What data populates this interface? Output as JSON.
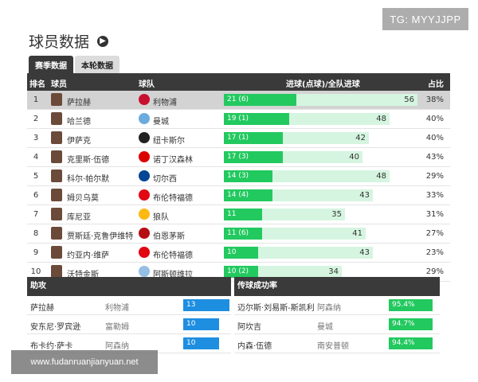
{
  "watermark_top": "TG: MYYJJPP",
  "watermark_bottom": "www.fudanruanjianyuan.net",
  "title": "球员数据",
  "tabs": [
    "赛季数据",
    "本轮数据"
  ],
  "headers": {
    "rank": "排名",
    "player": "球员",
    "team": "球队",
    "goals": "进球(点球)/全队进球",
    "share": "占比"
  },
  "colors": {
    "header_bg": "#3a3a3a",
    "goal_bar": "#22c95f",
    "goal_bar_bg": "#d5f5e0",
    "assist_bar": "#1e8ee0",
    "pass_bar": "#22c95f"
  },
  "players": [
    {
      "rank": "1",
      "name": "萨拉赫",
      "team": "利物浦",
      "crest": "#c8102e",
      "goals_label": "21 (6)",
      "goals": 21,
      "team_goals": 56,
      "team_goals_label": "56",
      "share": "38%",
      "selected": true
    },
    {
      "rank": "2",
      "name": "哈兰德",
      "team": "曼城",
      "crest": "#6cabdd",
      "goals_label": "19 (1)",
      "goals": 19,
      "team_goals": 48,
      "team_goals_label": "48",
      "share": "40%"
    },
    {
      "rank": "3",
      "name": "伊萨克",
      "team": "纽卡斯尔",
      "crest": "#222222",
      "goals_label": "17 (1)",
      "goals": 17,
      "team_goals": 42,
      "team_goals_label": "42",
      "share": "40%"
    },
    {
      "rank": "4",
      "name": "克里斯·伍德",
      "team": "诺丁汉森林",
      "crest": "#dd0000",
      "goals_label": "17 (3)",
      "goals": 17,
      "team_goals": 40,
      "team_goals_label": "40",
      "share": "43%"
    },
    {
      "rank": "5",
      "name": "科尔·帕尔默",
      "team": "切尔西",
      "crest": "#034694",
      "goals_label": "14 (3)",
      "goals": 14,
      "team_goals": 48,
      "team_goals_label": "48",
      "share": "29%"
    },
    {
      "rank": "6",
      "name": "姆贝乌莫",
      "team": "布伦特福德",
      "crest": "#e30613",
      "goals_label": "14 (4)",
      "goals": 14,
      "team_goals": 43,
      "team_goals_label": "43",
      "share": "33%"
    },
    {
      "rank": "7",
      "name": "库尼亚",
      "team": "狼队",
      "crest": "#fdb913",
      "goals_label": "11",
      "goals": 11,
      "team_goals": 35,
      "team_goals_label": "35",
      "share": "31%"
    },
    {
      "rank": "8",
      "name": "贾斯廷·克鲁伊维特",
      "team": "伯恩茅斯",
      "crest": "#b50e12",
      "goals_label": "11 (6)",
      "goals": 11,
      "team_goals": 41,
      "team_goals_label": "41",
      "share": "27%"
    },
    {
      "rank": "9",
      "name": "约亚内·维萨",
      "team": "布伦特福德",
      "crest": "#e30613",
      "goals_label": "10",
      "goals": 10,
      "team_goals": 43,
      "team_goals_label": "43",
      "share": "23%"
    },
    {
      "rank": "10",
      "name": "沃特金斯",
      "team": "阿斯顿维拉",
      "crest": "#95bfe5",
      "goals_label": "10 (2)",
      "goals": 10,
      "team_goals": 34,
      "team_goals_label": "34",
      "share": "29%"
    }
  ],
  "assists": {
    "title": "助攻",
    "rows": [
      {
        "name": "萨拉赫",
        "team": "利物浦",
        "value": "13",
        "num": 13
      },
      {
        "name": "安东尼·罗宾逊",
        "team": "富勒姆",
        "value": "10",
        "num": 10
      },
      {
        "name": "布卡约·萨卡",
        "team": "阿森纳",
        "value": "10",
        "num": 10
      }
    ]
  },
  "passing": {
    "title": "传球成功率",
    "rows": [
      {
        "name": "迈尔斯·刘易斯-斯凯利",
        "team": "阿森纳",
        "value": "95.4%",
        "num": 95.4
      },
      {
        "name": "阿坎吉",
        "team": "曼城",
        "value": "94.7%",
        "num": 94.7
      },
      {
        "name": "内森·伍德",
        "team": "南安普顿",
        "value": "94.4%",
        "num": 94.4
      }
    ]
  }
}
